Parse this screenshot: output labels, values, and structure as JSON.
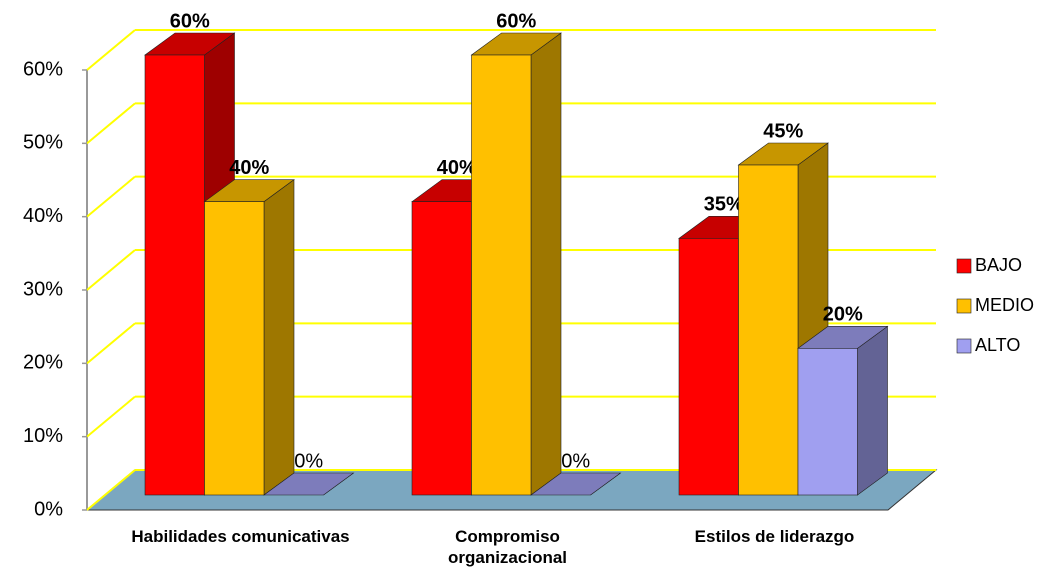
{
  "chart_data": {
    "type": "bar3d",
    "categories": [
      "Habilidades comunicativas",
      "Compromiso organizacional",
      "Estilos de liderazgo"
    ],
    "series": [
      {
        "name": "BAJO",
        "color": "#ff0000",
        "values": [
          60,
          40,
          35
        ],
        "value_labels": [
          "60%",
          "40%",
          "35%"
        ]
      },
      {
        "name": "MEDIO",
        "color": "#ffc000",
        "values": [
          40,
          60,
          45
        ],
        "value_labels": [
          "40%",
          "60%",
          "45%"
        ]
      },
      {
        "name": "ALTO",
        "color": "#a09ff0",
        "values": [
          0,
          0,
          20
        ],
        "value_labels": [
          "0%",
          "0%",
          "20%"
        ]
      }
    ],
    "ylim": [
      0,
      60
    ],
    "yticks": [
      {
        "value": 0,
        "label": "0%"
      },
      {
        "value": 10,
        "label": "10%"
      },
      {
        "value": 20,
        "label": "20%"
      },
      {
        "value": 30,
        "label": "30%"
      },
      {
        "value": 40,
        "label": "40%"
      },
      {
        "value": 50,
        "label": "50%"
      },
      {
        "value": 60,
        "label": "60%"
      }
    ],
    "grid": true,
    "grid_color": "#ffff00",
    "floor_color": "#7ba7c0",
    "legend": "right"
  }
}
